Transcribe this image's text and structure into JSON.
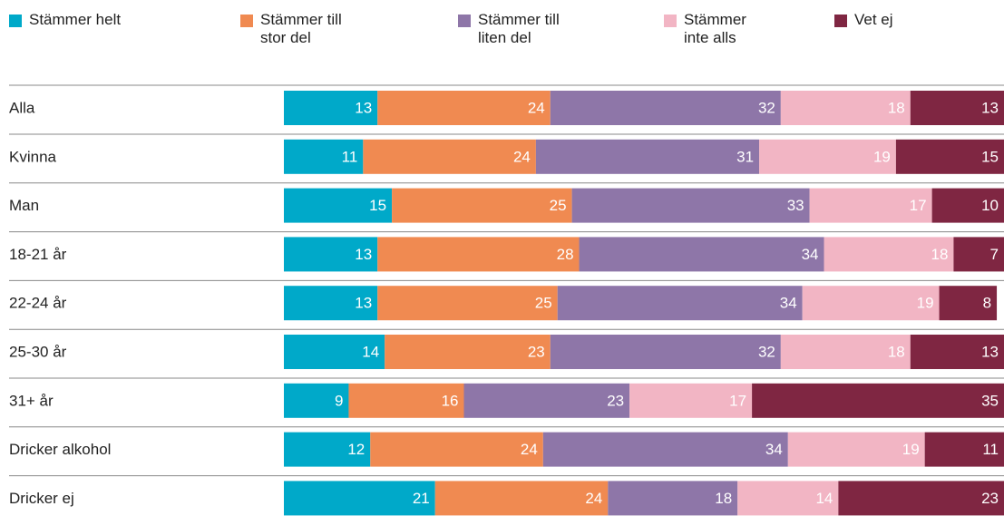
{
  "chart_data": {
    "type": "stacked-bar-horizontal",
    "categories": [
      "Alla",
      "Kvinna",
      "Man",
      "18-21 år",
      "22-24 år",
      "25-30 år",
      "31+ år",
      "Dricker alkohol",
      "Dricker ej"
    ],
    "series": [
      {
        "name": "Stämmer helt",
        "color": "#00a9c9",
        "values": [
          13,
          11,
          15,
          13,
          13,
          14,
          9,
          12,
          21
        ]
      },
      {
        "name": "Stämmer till stor del",
        "color": "#f08a51",
        "values": [
          24,
          24,
          25,
          28,
          25,
          23,
          16,
          24,
          24
        ]
      },
      {
        "name": "Stämmer till liten del",
        "color": "#8e76a8",
        "values": [
          32,
          31,
          33,
          34,
          34,
          32,
          23,
          34,
          18
        ]
      },
      {
        "name": "Stämmer inte alls",
        "color": "#f2b5c4",
        "values": [
          18,
          19,
          17,
          18,
          19,
          18,
          17,
          19,
          14
        ]
      },
      {
        "name": "Vet ej",
        "color": "#7f2642",
        "values": [
          13,
          15,
          10,
          7,
          8,
          13,
          35,
          11,
          23
        ]
      }
    ],
    "xlim": [
      0,
      100
    ],
    "legend": "top"
  }
}
